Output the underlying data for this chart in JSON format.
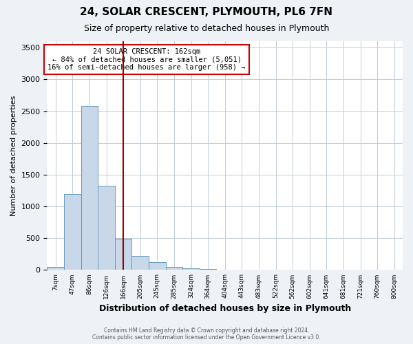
{
  "title": "24, SOLAR CRESCENT, PLYMOUTH, PL6 7FN",
  "subtitle": "Size of property relative to detached houses in Plymouth",
  "xlabel": "Distribution of detached houses by size in Plymouth",
  "ylabel": "Number of detached properties",
  "bin_labels": [
    "7sqm",
    "47sqm",
    "86sqm",
    "126sqm",
    "166sqm",
    "205sqm",
    "245sqm",
    "285sqm",
    "324sqm",
    "364sqm",
    "404sqm",
    "443sqm",
    "483sqm",
    "522sqm",
    "562sqm",
    "602sqm",
    "641sqm",
    "681sqm",
    "721sqm",
    "760sqm",
    "800sqm"
  ],
  "bar_heights": [
    50,
    1200,
    2580,
    1330,
    490,
    220,
    120,
    50,
    30,
    20,
    10,
    5,
    2,
    0,
    0,
    0,
    0,
    0,
    0,
    0,
    0
  ],
  "bar_color": "#c8d8e8",
  "bar_edge_color": "#6699bb",
  "vline_position": 4,
  "vline_color": "#990000",
  "annotation_line1": "24 SOLAR CRESCENT: 162sqm",
  "annotation_line2": "← 84% of detached houses are smaller (5,051)",
  "annotation_line3": "16% of semi-detached houses are larger (958) →",
  "annotation_box_color": "#ffffff",
  "annotation_box_edge_color": "#cc0000",
  "ylim": [
    0,
    3600
  ],
  "yticks": [
    0,
    500,
    1000,
    1500,
    2000,
    2500,
    3000,
    3500
  ],
  "footer_line1": "Contains HM Land Registry data © Crown copyright and database right 2024.",
  "footer_line2": "Contains public sector information licensed under the Open Government Licence v3.0.",
  "bg_color": "#eef2f7",
  "plot_bg_color": "#ffffff",
  "grid_color": "#c0ccd8"
}
